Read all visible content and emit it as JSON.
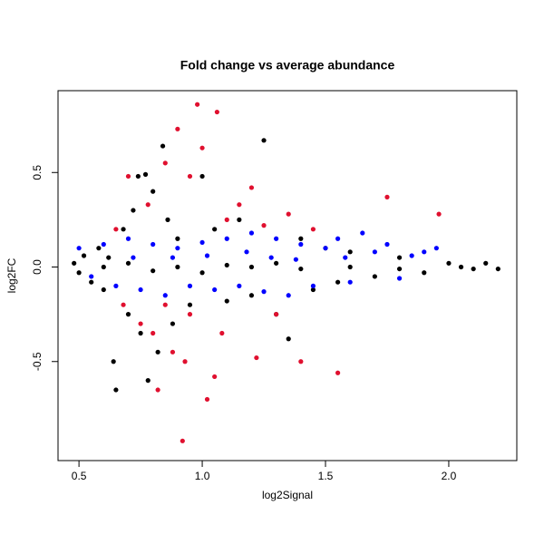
{
  "chart_data": {
    "type": "scatter",
    "title": "Fold change vs average abundance",
    "x_label": "log2Signal",
    "y_label": "log2FC",
    "xlim": [
      0.415,
      2.276
    ],
    "ylim": [
      -1.024,
      0.933
    ],
    "xticks": [
      0.5,
      {
        "value": 1,
        "label": "1.0"
      },
      1.5,
      {
        "value": 2,
        "label": "2.0"
      }
    ],
    "yticks": [
      -0.5,
      {
        "value": 0,
        "label": "0.0"
      },
      0.5
    ],
    "series": [
      {
        "color": "#000000",
        "x": [
          0.48,
          0.5,
          0.52,
          0.55,
          0.58,
          0.6,
          0.62,
          0.64,
          0.65,
          0.68,
          0.7,
          0.72,
          0.74,
          0.75,
          0.77,
          0.78,
          0.8,
          0.82,
          0.84,
          0.86,
          0.88,
          0.9,
          0.95,
          1.0,
          1.05,
          1.1,
          1.15,
          1.25,
          1.2,
          1.3,
          1.35,
          1.4,
          1.45,
          1.5,
          1.55,
          1.6,
          1.7,
          1.8,
          1.9,
          2.0,
          2.1,
          2.15,
          2.2,
          0.6,
          0.7,
          0.8,
          0.9,
          1.0,
          1.1,
          1.2,
          1.3,
          1.4,
          1.6,
          1.8,
          2.05
        ],
        "y": [
          0.02,
          -0.03,
          0.06,
          -0.08,
          0.1,
          -0.12,
          0.05,
          -0.5,
          -0.65,
          0.2,
          -0.25,
          0.3,
          0.48,
          -0.35,
          0.49,
          -0.6,
          0.4,
          -0.45,
          0.64,
          0.25,
          -0.3,
          0.15,
          -0.2,
          0.48,
          0.2,
          -0.18,
          0.25,
          0.67,
          -0.15,
          -0.25,
          -0.38,
          0.15,
          -0.12,
          0.1,
          -0.08,
          0.08,
          -0.05,
          0.05,
          -0.03,
          0.02,
          -0.01,
          0.02,
          -0.01,
          0.0,
          0.02,
          -0.02,
          0.0,
          -0.03,
          0.01,
          0.0,
          0.02,
          -0.01,
          0.0,
          -0.01,
          0.0
        ]
      },
      {
        "color": "#0000ff",
        "x": [
          0.5,
          0.55,
          0.6,
          0.65,
          0.7,
          0.75,
          0.8,
          0.85,
          0.9,
          0.95,
          1.0,
          1.05,
          1.1,
          1.15,
          1.2,
          1.25,
          1.3,
          1.35,
          1.4,
          1.45,
          1.5,
          1.55,
          1.6,
          1.65,
          1.7,
          1.75,
          1.8,
          1.85,
          1.95,
          1.9,
          0.72,
          0.88,
          1.02,
          1.18,
          1.28,
          1.38,
          1.58
        ],
        "y": [
          0.1,
          -0.05,
          0.12,
          -0.1,
          0.15,
          -0.12,
          0.12,
          -0.15,
          0.1,
          -0.1,
          0.13,
          -0.12,
          0.15,
          -0.1,
          0.18,
          -0.13,
          0.15,
          -0.15,
          0.12,
          -0.1,
          0.1,
          0.15,
          -0.08,
          0.18,
          0.08,
          0.12,
          -0.06,
          0.06,
          0.1,
          0.08,
          0.05,
          0.05,
          0.06,
          0.08,
          0.05,
          0.04,
          0.05
        ]
      },
      {
        "color": "#e0102f",
        "x": [
          0.65,
          0.68,
          0.7,
          0.75,
          0.78,
          0.8,
          0.82,
          0.85,
          0.88,
          0.9,
          0.92,
          0.93,
          0.95,
          0.98,
          1.0,
          1.02,
          1.05,
          1.06,
          1.08,
          1.1,
          1.15,
          1.2,
          1.22,
          1.3,
          1.35,
          1.4,
          1.45,
          1.55,
          1.75,
          1.96,
          0.85,
          0.95,
          1.25
        ],
        "y": [
          0.2,
          -0.2,
          0.48,
          -0.3,
          0.33,
          -0.35,
          -0.65,
          0.55,
          -0.45,
          0.73,
          -0.92,
          -0.5,
          0.48,
          0.86,
          0.63,
          -0.7,
          -0.58,
          0.82,
          -0.35,
          0.25,
          0.33,
          0.42,
          -0.48,
          -0.25,
          0.28,
          -0.5,
          0.2,
          -0.56,
          0.37,
          0.28,
          -0.2,
          -0.25,
          0.22
        ]
      }
    ]
  }
}
